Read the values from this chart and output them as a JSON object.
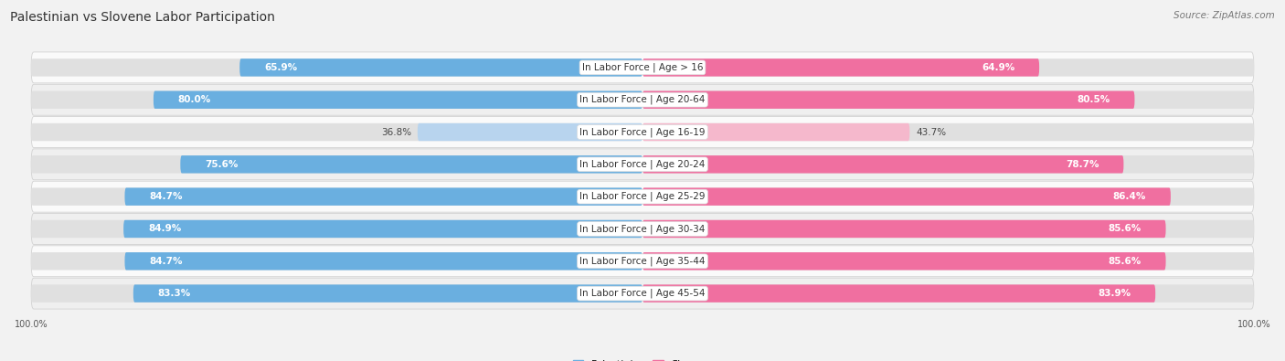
{
  "title": "Palestinian vs Slovene Labor Participation",
  "source": "Source: ZipAtlas.com",
  "categories": [
    "In Labor Force | Age > 16",
    "In Labor Force | Age 20-64",
    "In Labor Force | Age 16-19",
    "In Labor Force | Age 20-24",
    "In Labor Force | Age 25-29",
    "In Labor Force | Age 30-34",
    "In Labor Force | Age 35-44",
    "In Labor Force | Age 45-54"
  ],
  "palestinian_values": [
    65.9,
    80.0,
    36.8,
    75.6,
    84.7,
    84.9,
    84.7,
    83.3
  ],
  "slovene_values": [
    64.9,
    80.5,
    43.7,
    78.7,
    86.4,
    85.6,
    85.6,
    83.9
  ],
  "palestinian_color_strong": "#6aafe0",
  "palestinian_color_light": "#b8d4ee",
  "slovene_color_strong": "#f06fa0",
  "slovene_color_light": "#f5b8cc",
  "bg_color": "#f2f2f2",
  "track_color": "#e0e0e0",
  "row_bg_light": "#fafafa",
  "row_bg_dark": "#efefef",
  "max_val": 100.0,
  "bar_height": 0.55,
  "title_fontsize": 10,
  "cat_fontsize": 7.5,
  "value_fontsize": 7.5,
  "axis_label_fontsize": 7,
  "legend_fontsize": 8
}
